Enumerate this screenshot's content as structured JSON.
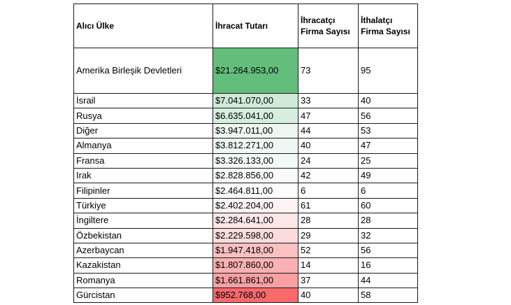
{
  "headers": {
    "country": "Alıcı Ülke",
    "amount": "İhracat Tutarı",
    "exporters_line1": "İhracatçı",
    "exporters_line2": "Firma Sayısı",
    "importers_line1": "İthalatçı",
    "importers_line2": "Firma Sayısı"
  },
  "rows": [
    {
      "country": "Amerika Birleşik Devletleri",
      "amount": "$21.264.953,00",
      "exporters": "73",
      "importers": "95",
      "fill": "#63be7b"
    },
    {
      "country": "İsrail",
      "amount": "$7.041.070,00",
      "exporters": "33",
      "importers": "40",
      "fill": "#cfebd8"
    },
    {
      "country": "Rusya",
      "amount": "$6.635.041,00",
      "exporters": "47",
      "importers": "56",
      "fill": "#d6eedd"
    },
    {
      "country": "Diğer",
      "amount": "$3.947.011,00",
      "exporters": "44",
      "importers": "53",
      "fill": "#edf6f1"
    },
    {
      "country": "Almanya",
      "amount": "$3.812.271,00",
      "exporters": "40",
      "importers": "47",
      "fill": "#eff7f3"
    },
    {
      "country": "Fransa",
      "amount": "$3.326.133,00",
      "exporters": "24",
      "importers": "25",
      "fill": "#f3f9f6"
    },
    {
      "country": "Irak",
      "amount": "$2.828.856,00",
      "exporters": "42",
      "importers": "49",
      "fill": "#f8fbf9"
    },
    {
      "country": "Filipinler",
      "amount": "$2.464.811,00",
      "exporters": "6",
      "importers": "6",
      "fill": "#fcfcfc"
    },
    {
      "country": "Türkiye",
      "amount": "$2.402.204,00",
      "exporters": "61",
      "importers": "60",
      "fill": "#fdf3f3"
    },
    {
      "country": "İngiltere",
      "amount": "$2.284.641,00",
      "exporters": "28",
      "importers": "28",
      "fill": "#fce6e7"
    },
    {
      "country": "Özbekistan",
      "amount": "$2.229.598,00",
      "exporters": "29",
      "importers": "32",
      "fill": "#fbdcdd"
    },
    {
      "country": "Azerbaycan",
      "amount": "$1.947.418,00",
      "exporters": "52",
      "importers": "56",
      "fill": "#fac0c2"
    },
    {
      "country": "Kazakistan",
      "amount": "$1.807.860,00",
      "exporters": "14",
      "importers": "16",
      "fill": "#f9b1b3"
    },
    {
      "country": "Romanya",
      "amount": "$1.661.861,00",
      "exporters": "37",
      "importers": "44",
      "fill": "#f8a0a2"
    },
    {
      "country": "Gürcistan",
      "amount": "$952.768,00",
      "exporters": "40",
      "importers": "58",
      "fill": "#f8696b"
    }
  ]
}
